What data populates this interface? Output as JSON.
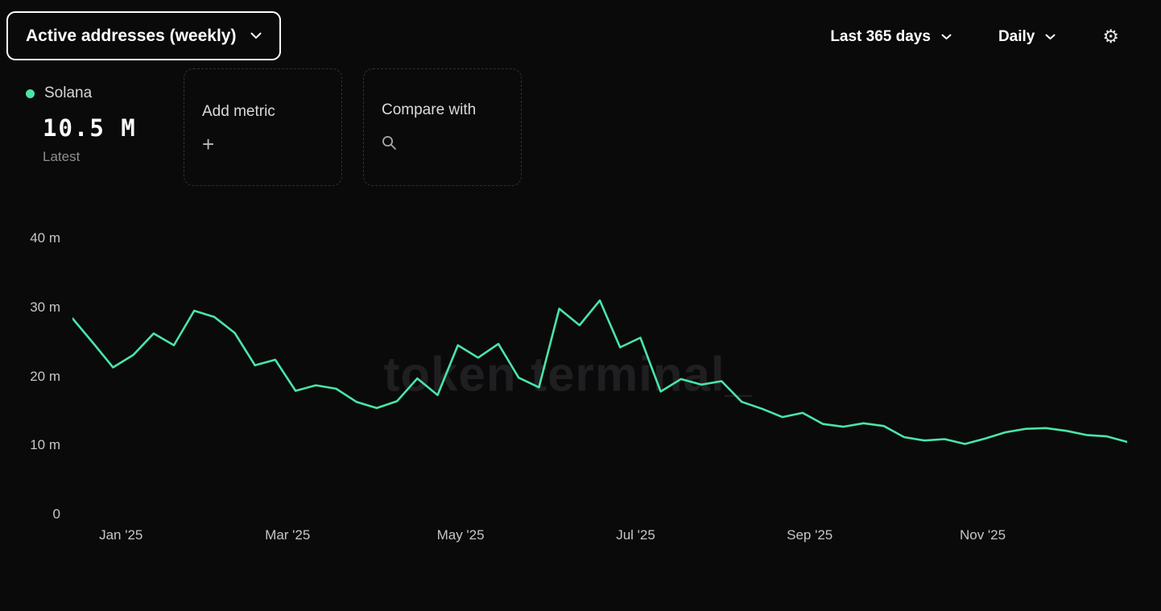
{
  "header": {
    "metric_selector_label": "Active addresses (weekly)",
    "range_selector_label": "Last 365 days",
    "granularity_selector_label": "Daily"
  },
  "icons": {
    "gear": "⚙",
    "plus": "+"
  },
  "legend": {
    "series_name": "Solana",
    "latest_value": "10.5 M",
    "latest_label": "Latest"
  },
  "actions": {
    "add_metric_label": "Add metric",
    "compare_with_label": "Compare with"
  },
  "watermark": "token terminal_",
  "colors": {
    "background": "#0a0a0b",
    "accent_green": "#4ae5a7",
    "tick_text": "#c6c6c6"
  },
  "chart_data": {
    "type": "line",
    "title": "Active addresses (weekly)",
    "legend_position": "top-left",
    "grid": false,
    "latest": "10.5 M",
    "series": [
      {
        "name": "Solana",
        "color": "#4ae5a7",
        "unit": "millions of active addresses (weekly)",
        "values": [
          28.4,
          24.9,
          21.3,
          23.1,
          26.2,
          24.5,
          29.5,
          28.6,
          26.3,
          21.6,
          22.4,
          17.9,
          18.7,
          18.2,
          16.3,
          15.4,
          16.4,
          19.7,
          17.3,
          24.5,
          22.7,
          24.7,
          19.8,
          18.4,
          29.8,
          27.4,
          31.0,
          24.2,
          25.6,
          17.8,
          19.6,
          18.8,
          19.3,
          16.3,
          15.3,
          14.1,
          14.7,
          13.1,
          12.7,
          13.2,
          12.8,
          11.2,
          10.7,
          10.9,
          10.2,
          11.0,
          11.9,
          12.4,
          12.5,
          12.1,
          11.5,
          11.3,
          10.5
        ]
      }
    ],
    "x_axis": {
      "range_label": "Last 365 days",
      "ticks": [
        {
          "label": "Jan '25",
          "f": 0.046
        },
        {
          "label": "Mar '25",
          "f": 0.204
        },
        {
          "label": "May '25",
          "f": 0.368
        },
        {
          "label": "Jul '25",
          "f": 0.534
        },
        {
          "label": "Sep '25",
          "f": 0.699
        },
        {
          "label": "Nov '25",
          "f": 0.863
        }
      ]
    },
    "y_axis": {
      "max": 40,
      "ticks": [
        {
          "label": "40 m",
          "value": 40
        },
        {
          "label": "30 m",
          "value": 30
        },
        {
          "label": "20 m",
          "value": 20
        },
        {
          "label": "10 m",
          "value": 10
        },
        {
          "label": "0",
          "value": 0
        }
      ]
    }
  }
}
